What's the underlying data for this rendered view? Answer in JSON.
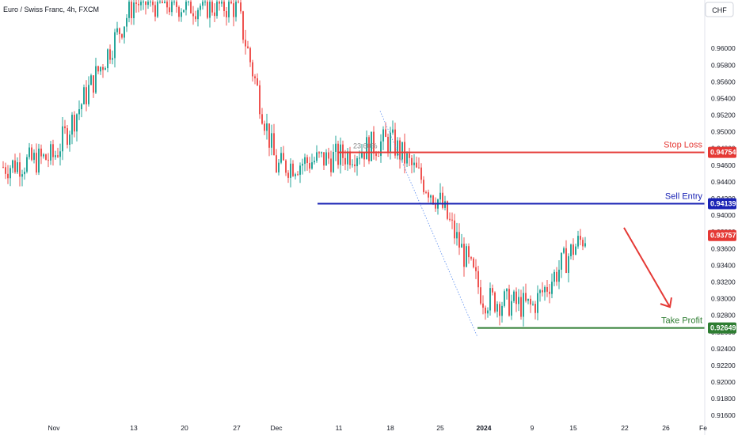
{
  "header": {
    "title": "Euro / Swiss Franc, 4h, FXCM"
  },
  "currency_button": {
    "label": "CHF"
  },
  "colors": {
    "up": "#26a69a",
    "down": "#ef5350",
    "stop_loss": "#e53935",
    "sell_entry": "#1a23b5",
    "take_profit": "#2e7d32",
    "current_price": "#e53935",
    "axis_text": "#131722",
    "grid": "#f0f3fa"
  },
  "chart_data": {
    "type": "candlestick",
    "title": "Euro / Swiss Franc, 4h, FXCM",
    "ylim": [
      0.9146,
      0.9658
    ],
    "y_ticks": [
      "0.96000",
      "0.95800",
      "0.95600",
      "0.95400",
      "0.95200",
      "0.95000",
      "0.94800",
      "0.94600",
      "0.94400",
      "0.94200",
      "0.94000",
      "0.93800",
      "0.93600",
      "0.93400",
      "0.93200",
      "0.93000",
      "0.92800",
      "0.92600",
      "0.92400",
      "0.92200",
      "0.92000",
      "0.91800",
      "0.91600"
    ],
    "x_ticks": [
      "Nov",
      "13",
      "20",
      "27",
      "Dec",
      "11",
      "18",
      "25",
      "2024",
      "9",
      "15",
      "22",
      "26",
      "Fe"
    ],
    "grid": false,
    "close_path": [
      [
        "Nov",
        0.947
      ],
      [
        "13",
        0.9655
      ],
      [
        "20",
        0.9652
      ],
      [
        "27",
        0.965
      ],
      [
        "Dec",
        0.9458
      ],
      [
        "11",
        0.947
      ],
      [
        "18",
        0.949
      ],
      [
        "25",
        0.9415
      ],
      [
        "2024",
        0.93
      ],
      [
        "9",
        0.929
      ],
      [
        "15",
        0.936
      ],
      [
        "16",
        0.9376
      ]
    ],
    "levels": [
      {
        "name": "Stop Loss",
        "value": 0.94754,
        "label": "0.94754"
      },
      {
        "name": "Sell Entry",
        "value": 0.94139,
        "label": "0.94139"
      },
      {
        "name": "Take Profit",
        "value": 0.92649,
        "label": "0.92649"
      }
    ],
    "current_price": {
      "value": 0.93757,
      "label": "0.93757"
    },
    "fib_label": "23.60%",
    "annotations": [
      "Stop Loss",
      "Sell Entry",
      "Take Profit"
    ],
    "projection_arrow": {
      "from": 0.9385,
      "to": 0.929
    }
  }
}
